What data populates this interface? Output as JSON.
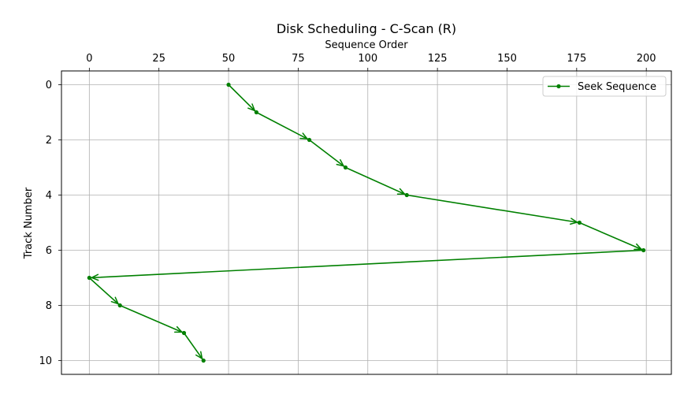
{
  "chart_data": {
    "type": "line",
    "title": "Disk Scheduling - C-Scan (R)",
    "xlabel": "Sequence Order",
    "ylabel": "Track Number",
    "x_axis_position": "top",
    "y_axis_inverted": true,
    "xlim": [
      -10,
      209
    ],
    "ylim": [
      10.5,
      -0.5
    ],
    "xticks": [
      0,
      25,
      50,
      75,
      100,
      125,
      150,
      175,
      200
    ],
    "yticks": [
      0,
      2,
      4,
      6,
      8,
      10
    ],
    "grid": true,
    "legend": "top-right",
    "series": [
      {
        "name": "Seek Sequence",
        "color": "#008000",
        "marker": "point",
        "arrows": true,
        "points": [
          {
            "x": 50,
            "y": 0
          },
          {
            "x": 60,
            "y": 1
          },
          {
            "x": 79,
            "y": 2
          },
          {
            "x": 92,
            "y": 3
          },
          {
            "x": 114,
            "y": 4
          },
          {
            "x": 176,
            "y": 5
          },
          {
            "x": 199,
            "y": 6
          },
          {
            "x": 0,
            "y": 7
          },
          {
            "x": 11,
            "y": 8
          },
          {
            "x": 34,
            "y": 9
          },
          {
            "x": 41,
            "y": 10
          }
        ]
      }
    ]
  }
}
